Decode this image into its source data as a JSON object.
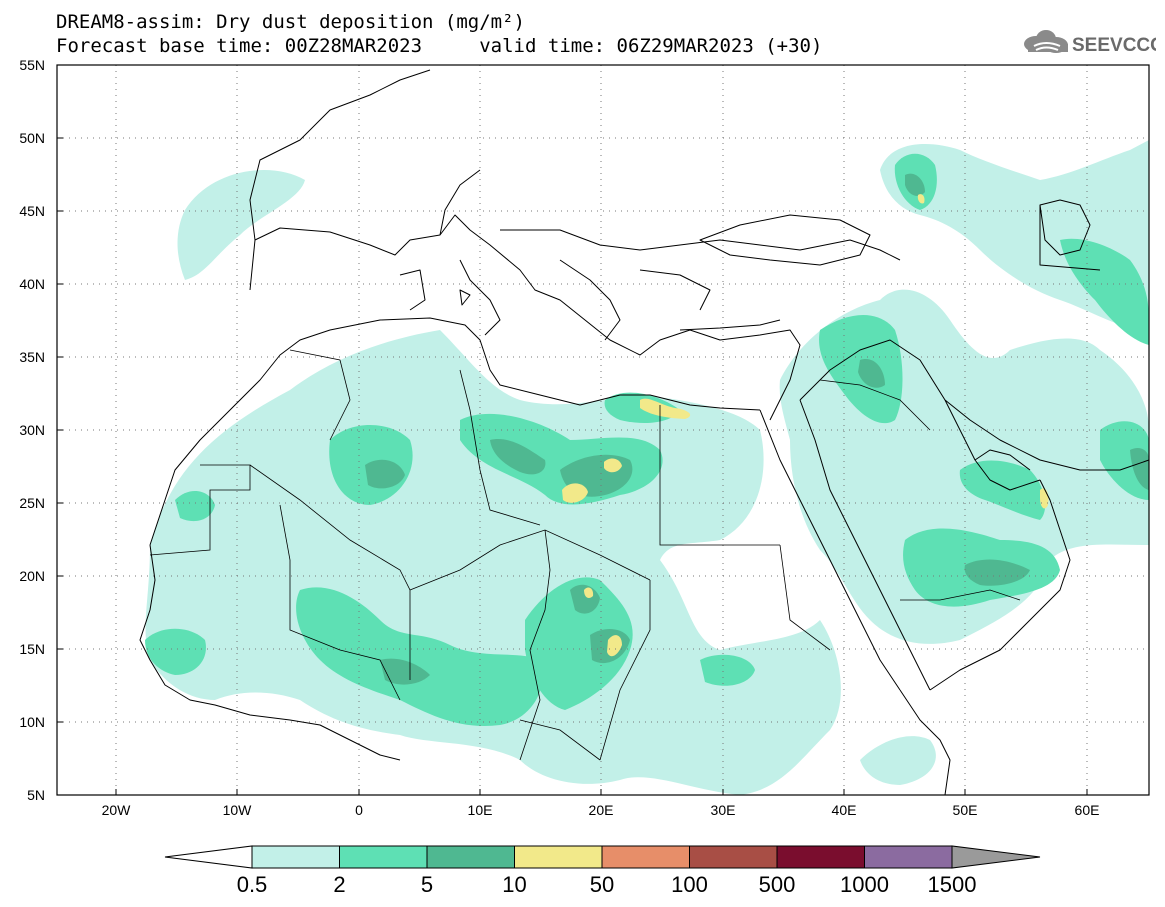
{
  "header": {
    "title_line1": "DREAM8-assim: Dry dust deposition (mg/m²)",
    "title_line2": "Forecast base time: 00Z28MAR2023     valid time: 06Z29MAR2023 (+30)"
  },
  "logo": {
    "text": "SEEVCCC",
    "icon": "cloud-icon"
  },
  "map": {
    "lat_labels": [
      "55N",
      "50N",
      "45N",
      "40N",
      "35N",
      "30N",
      "25N",
      "20N",
      "15N",
      "10N",
      "5N"
    ],
    "lon_labels": [
      "20W",
      "10W",
      "0",
      "10E",
      "20E",
      "30E",
      "40E",
      "50E",
      "60E"
    ],
    "grid": "dotted"
  },
  "legend": {
    "labels": [
      "0.5",
      "2",
      "5",
      "10",
      "50",
      "100",
      "500",
      "1000",
      "1500"
    ],
    "colors": [
      "#c2f0e8",
      "#5ee0b4",
      "#4fb891",
      "#f2e98a",
      "#e78e69",
      "#a84e45",
      "#7a0d2e",
      "#8b6ba0"
    ],
    "under_color": "#ffffff",
    "over_color": "#9a9a9a"
  }
}
